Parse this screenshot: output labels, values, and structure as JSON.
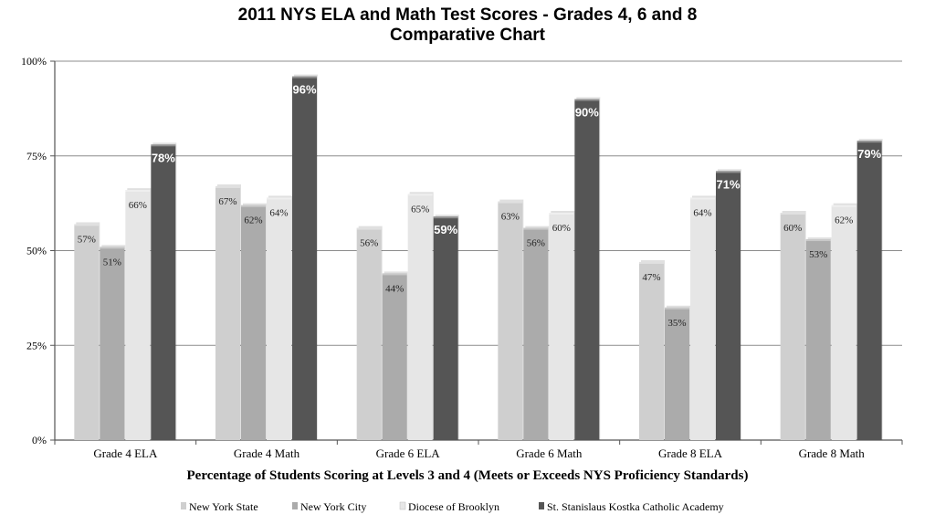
{
  "chart_data": {
    "type": "bar",
    "title": "2011 NYS ELA and Math Test Scores - Grades 4, 6 and 8",
    "subtitle": "Comparative Chart",
    "xlabel": "Percentage of Students Scoring at Levels 3 and 4 (Meets or Exceeds NYS Proficiency Standards)",
    "ylabel": "",
    "ylim": [
      0,
      100
    ],
    "yticks": [
      "0%",
      "25%",
      "50%",
      "75%",
      "100%"
    ],
    "ytick_values": [
      0,
      25,
      50,
      75,
      100
    ],
    "grid": true,
    "legend_position": "bottom",
    "categories": [
      "Grade 4 ELA",
      "Grade 4 Math",
      "Grade 6 ELA",
      "Grade 6 Math",
      "Grade 8 ELA",
      "Grade 8 Math"
    ],
    "series": [
      {
        "name": "New York State",
        "color": "#cfcfcf",
        "values": [
          57,
          67,
          56,
          63,
          47,
          60
        ],
        "labels": [
          "57%",
          "67%",
          "56%",
          "63%",
          "47%",
          "60%"
        ]
      },
      {
        "name": "New York City",
        "color": "#ababab",
        "values": [
          51,
          62,
          44,
          56,
          35,
          53
        ],
        "labels": [
          "51%",
          "62%",
          "44%",
          "56%",
          "35%",
          "53%"
        ]
      },
      {
        "name": "Diocese of Brooklyn",
        "color": "#e6e6e6",
        "values": [
          66,
          64,
          65,
          60,
          64,
          62
        ],
        "labels": [
          "66%",
          "64%",
          "65%",
          "60%",
          "64%",
          "62%"
        ]
      },
      {
        "name": "St. Stanislaus Kostka Catholic Academy",
        "color": "#555555",
        "values": [
          78,
          96,
          59,
          90,
          71,
          79
        ],
        "labels": [
          "78%",
          "96%",
          "59%",
          "90%",
          "71%",
          "79%"
        ]
      }
    ]
  }
}
